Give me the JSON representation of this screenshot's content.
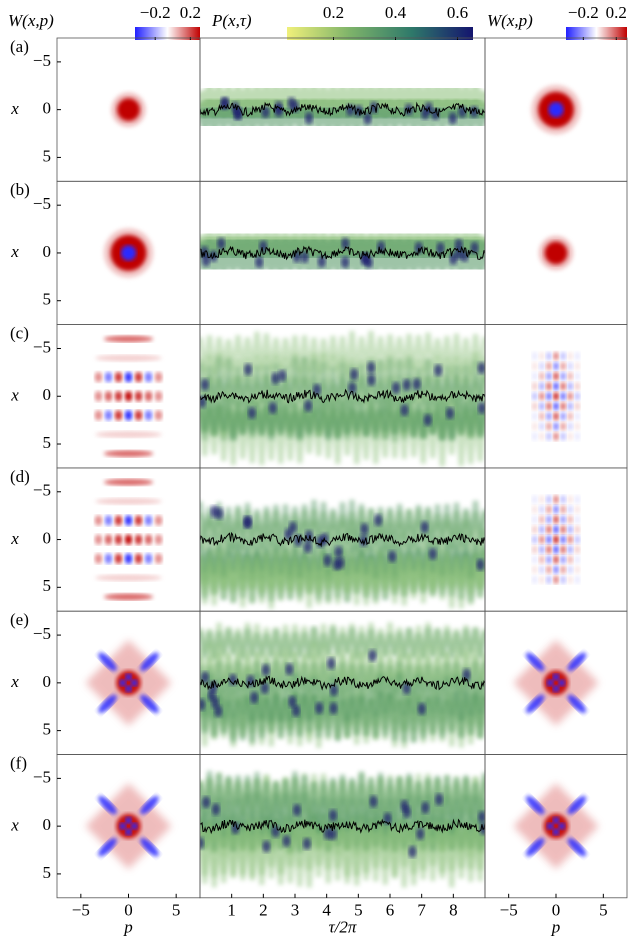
{
  "colorbars": [
    {
      "label": "W(x,p)",
      "lim": [
        -0.43,
        0.31
      ],
      "ticks": [
        {
          "value": -0.2,
          "label": "−0.2"
        },
        0.2
      ],
      "colors": [
        "#2020ff",
        "#ffffff",
        "#c00000"
      ]
    },
    {
      "label": "P(x,τ)",
      "lim": [
        0.05,
        0.65
      ],
      "ticks": [
        0.2,
        0.4,
        0.6
      ],
      "colors": [
        "#f0f07a",
        "#7fb46a",
        "#2f7a6a",
        "#14146e"
      ]
    },
    {
      "label": "W(x,p)",
      "lim": [
        -0.41,
        0.33
      ],
      "ticks": [
        {
          "value": -0.2,
          "label": "−0.2"
        },
        0.2
      ],
      "colors": [
        "#2020ff",
        "#ffffff",
        "#c00000"
      ]
    }
  ],
  "rows": [
    "(a)",
    "(b)",
    "(c)",
    "(d)",
    "(e)",
    "(f)"
  ],
  "x_label": "x",
  "xlim": [
    -7.5,
    7.5
  ],
  "xticks": [
    {
      "value": -5,
      "label": "−5"
    },
    0,
    5
  ],
  "p_label": "p",
  "plim": [
    -7.5,
    7.5
  ],
  "pticks": [
    {
      "value": -5,
      "label": "−5"
    },
    0,
    5
  ],
  "tau_label": "τ/2π",
  "taulim": [
    0,
    9
  ],
  "tauticks": [
    1,
    2,
    3,
    4,
    5,
    6,
    7,
    8
  ]
}
